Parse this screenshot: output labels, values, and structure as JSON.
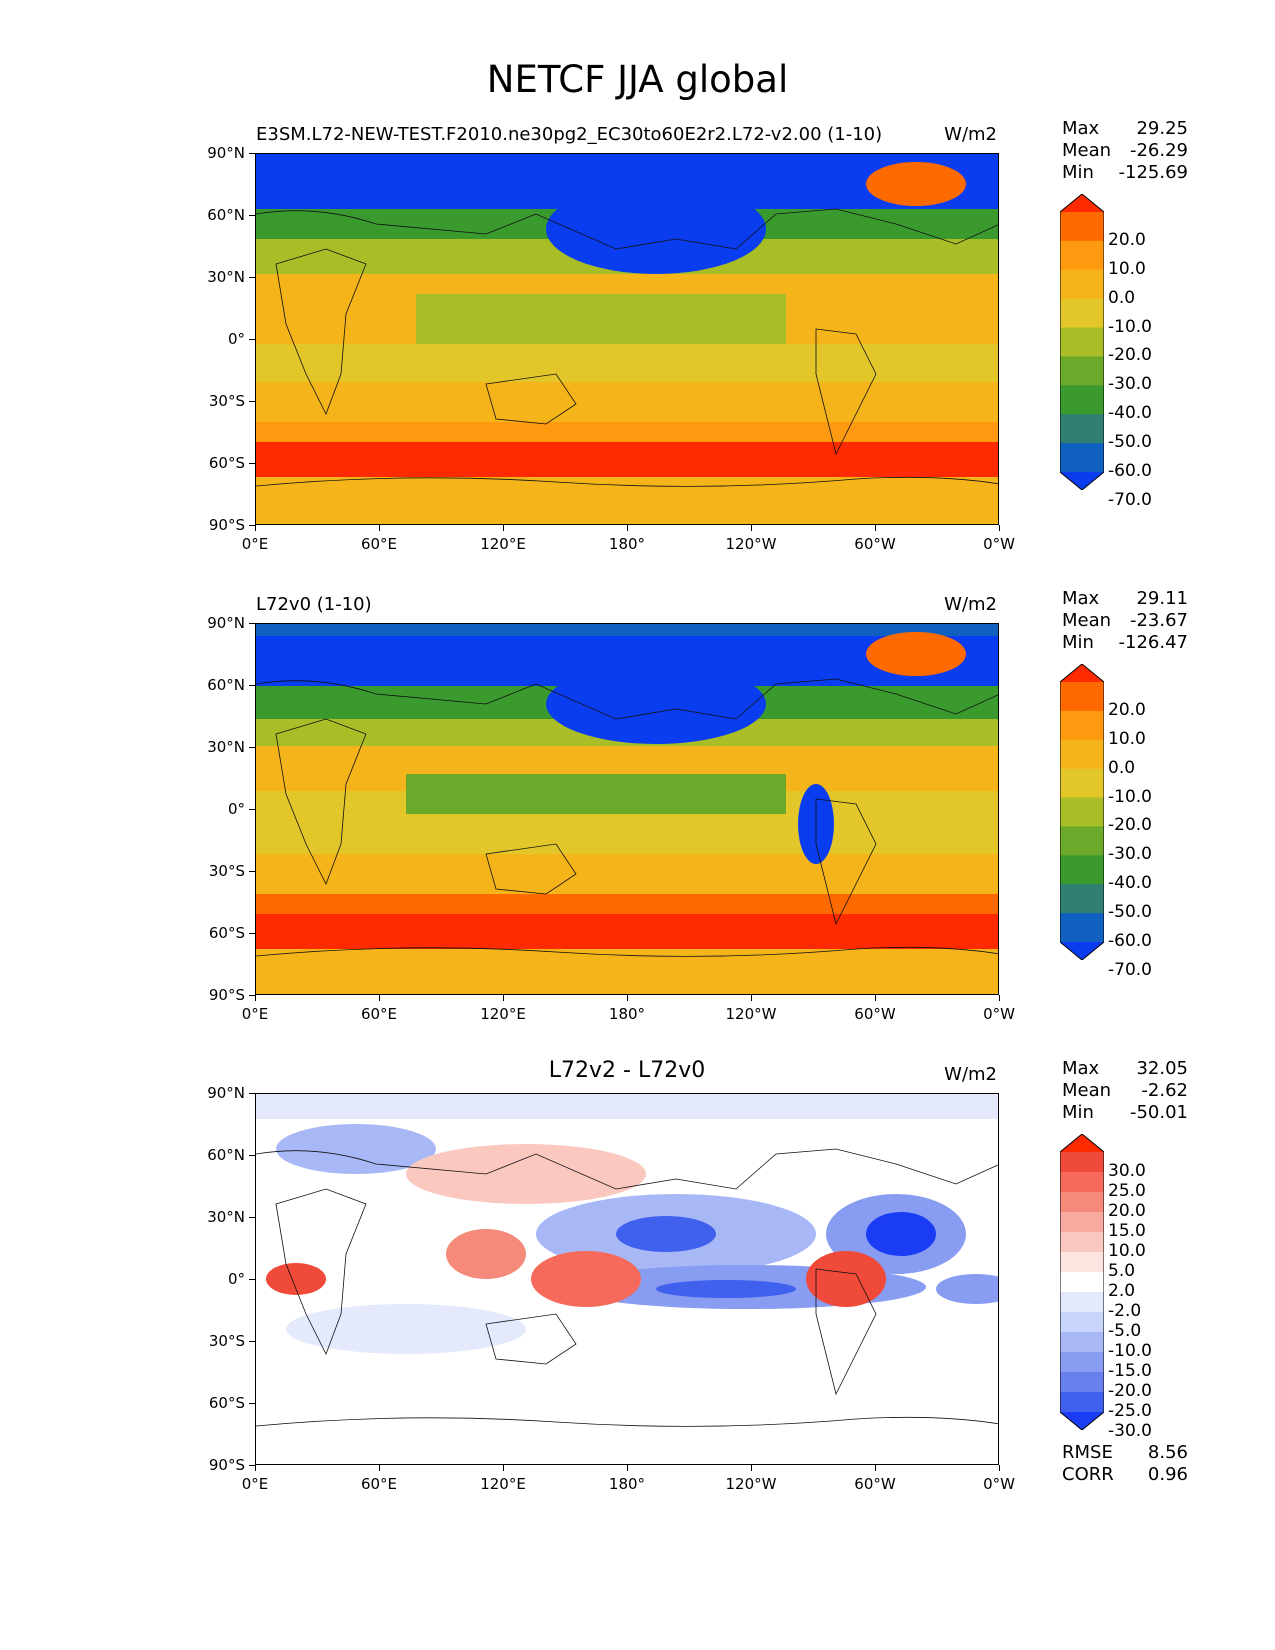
{
  "figure_title": "NETCF JJA global",
  "panels": [
    {
      "id": "test",
      "title_left": "E3SM.L72-NEW-TEST.F2010.ne30pg2_EC30to60E2r2.L72-v2.00 (1-10)",
      "title_center": "",
      "units": "W/m2",
      "stats": {
        "max_label": "Max",
        "max": "29.25",
        "mean_label": "Mean",
        "mean": "-26.29",
        "min_label": "Min",
        "min": "-125.69"
      },
      "colorbar": {
        "labels": [
          "20.0",
          "10.0",
          "0.0",
          "-10.0",
          "-20.0",
          "-30.0",
          "-40.0",
          "-50.0",
          "-60.0",
          "-70.0"
        ],
        "colors": [
          "#ff2a00",
          "#ff6a00",
          "#ff9a10",
          "#f5b41a",
          "#e3c72a",
          "#a9bd27",
          "#6ba92b",
          "#3a9a2d",
          "#2f8073",
          "#1060c0",
          "#0a3cf0"
        ]
      }
    },
    {
      "id": "reference",
      "title_left": "L72v0 (1-10)",
      "title_center": "",
      "units": "W/m2",
      "stats": {
        "max_label": "Max",
        "max": "29.11",
        "mean_label": "Mean",
        "mean": "-23.67",
        "min_label": "Min",
        "min": "-126.47"
      },
      "colorbar": {
        "labels": [
          "20.0",
          "10.0",
          "0.0",
          "-10.0",
          "-20.0",
          "-30.0",
          "-40.0",
          "-50.0",
          "-60.0",
          "-70.0"
        ],
        "colors": [
          "#ff2a00",
          "#ff6a00",
          "#ff9a10",
          "#f5b41a",
          "#e3c72a",
          "#a9bd27",
          "#6ba92b",
          "#3a9a2d",
          "#2f8073",
          "#1060c0",
          "#0a3cf0"
        ]
      }
    },
    {
      "id": "difference",
      "title_left": "",
      "title_center": "L72v2 - L72v0",
      "units": "W/m2",
      "stats": {
        "max_label": "Max",
        "max": "32.05",
        "mean_label": "Mean",
        "mean": "-2.62",
        "min_label": "Min",
        "min": "-50.01"
      },
      "colorbar": {
        "labels": [
          "30.0",
          "25.0",
          "20.0",
          "15.0",
          "10.0",
          "5.0",
          "2.0",
          "-2.0",
          "-5.0",
          "-10.0",
          "-15.0",
          "-20.0",
          "-25.0",
          "-30.0"
        ],
        "colors": [
          "#ff2a00",
          "#f04a3a",
          "#f56a5a",
          "#f58a7a",
          "#f8aaa0",
          "#fbc8c0",
          "#fde4e0",
          "#ffffff",
          "#e4eafc",
          "#c8d4fa",
          "#a8b8f6",
          "#889cf2",
          "#6880ee",
          "#4060ee",
          "#1a3cf5"
        ]
      },
      "fit_stats": {
        "rmse_label": "RMSE",
        "rmse": "8.56",
        "corr_label": "CORR",
        "corr": "0.96"
      }
    }
  ],
  "axes": {
    "y_ticks": [
      "90°N",
      "60°N",
      "30°N",
      "0°",
      "30°S",
      "60°S",
      "90°S"
    ],
    "x_ticks": [
      "0°E",
      "60°E",
      "120°E",
      "180°",
      "120°W",
      "60°W",
      "0°W"
    ]
  }
}
